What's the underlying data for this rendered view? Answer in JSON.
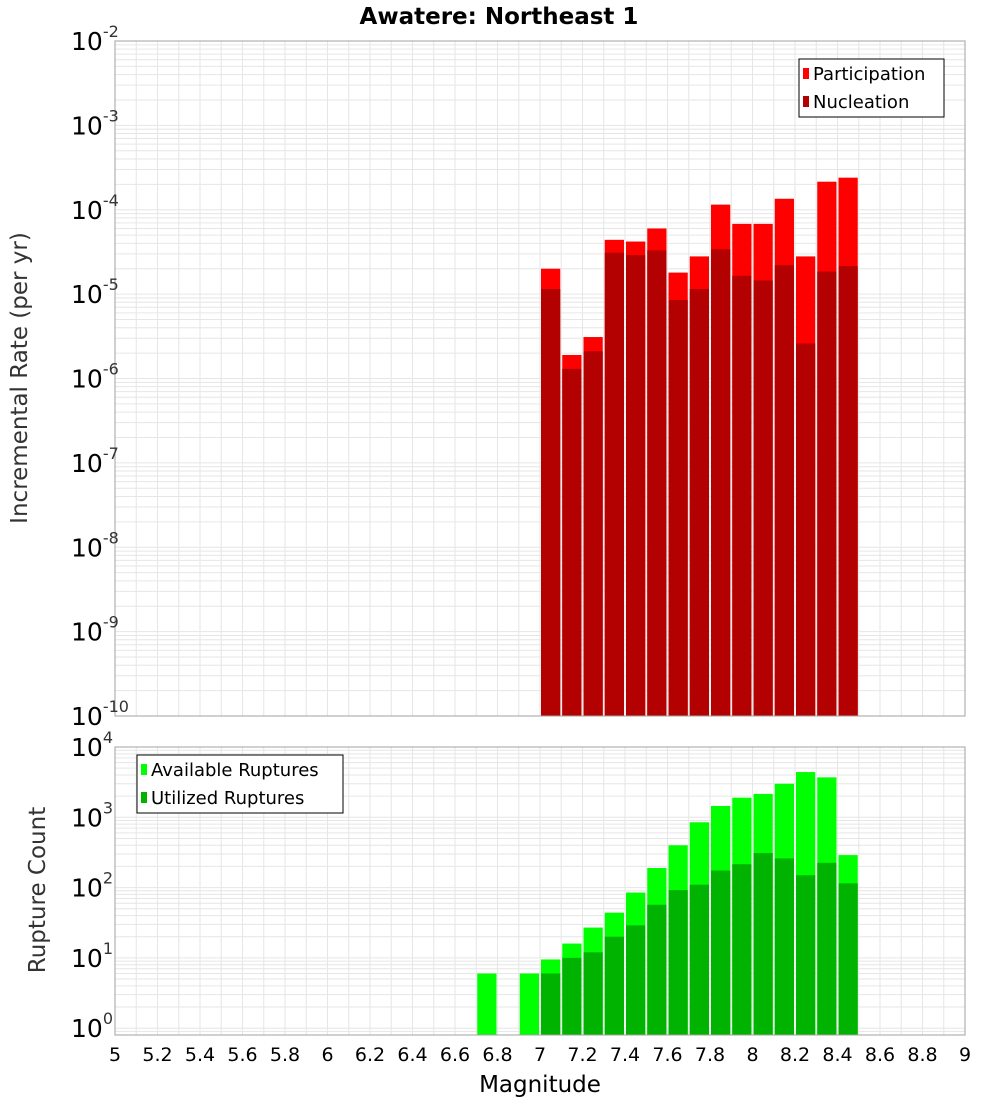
{
  "chart_data": {
    "title": "Awatere: Northeast 1",
    "xlabel": "Magnitude",
    "xlim": [
      5,
      9
    ],
    "xticks": [
      "5",
      "5.2",
      "5.4",
      "5.6",
      "5.8",
      "6",
      "6.2",
      "6.4",
      "6.6",
      "6.8",
      "7",
      "7.2",
      "7.4",
      "7.6",
      "7.8",
      "8",
      "8.2",
      "8.4",
      "8.6",
      "8.8",
      "9"
    ],
    "grid": true,
    "panels": [
      {
        "type": "bar",
        "yscale": "log",
        "ylabel": "Incremental Rate (per yr)",
        "ylim": [
          1e-10,
          0.01
        ],
        "ytick_exponents": [
          "-10",
          "-9",
          "-8",
          "-7",
          "-6",
          "-5",
          "-4",
          "-3",
          "-2"
        ],
        "legend_position": "top-right",
        "bin_width": 0.1,
        "x": [
          7.05,
          7.15,
          7.25,
          7.35,
          7.45,
          7.55,
          7.65,
          7.75,
          7.85,
          7.95,
          8.05,
          8.15,
          8.25,
          8.35,
          8.45
        ],
        "series": [
          {
            "name": "Participation",
            "color": "#ff0000",
            "values": [
              2e-05,
              1.9e-06,
              3.1e-06,
              4.4e-05,
              4.2e-05,
              6e-05,
              1.8e-05,
              2.8e-05,
              0.000115,
              6.8e-05,
              6.8e-05,
              0.000135,
              2.8e-05,
              0.000215,
              0.00024
            ]
          },
          {
            "name": "Nucleation",
            "color": "#b30000",
            "values": [
              1.15e-05,
              1.3e-06,
              2.1e-06,
              3.1e-05,
              2.9e-05,
              3.3e-05,
              8.5e-06,
              1.15e-05,
              3.4e-05,
              1.65e-05,
              1.45e-05,
              2.2e-05,
              2.6e-06,
              1.85e-05,
              2.15e-05
            ]
          }
        ]
      },
      {
        "type": "bar",
        "yscale": "log",
        "ylabel": "Rupture Count",
        "ylim": [
          0.8,
          10000.0
        ],
        "ytick_exponents": [
          "0",
          "1",
          "2",
          "3",
          "4"
        ],
        "legend_position": "top-left",
        "bin_width": 0.1,
        "x": [
          6.75,
          6.95,
          7.05,
          7.15,
          7.25,
          7.35,
          7.45,
          7.55,
          7.65,
          7.75,
          7.85,
          7.95,
          8.05,
          8.15,
          8.25,
          8.35,
          8.45
        ],
        "series": [
          {
            "name": "Available Ruptures",
            "color": "#00ff00",
            "values": [
              6,
              6,
              9.5,
              16,
              27,
              44,
              85,
              190,
              400,
              850,
              1450,
              1900,
              2150,
              3000,
              4400,
              3700,
              290
            ]
          },
          {
            "name": "Utilized Ruptures",
            "color": "#00b300",
            "values": [
              0,
              0,
              6,
              10,
              12,
              20,
              29,
              57,
              92,
              110,
              175,
              215,
              310,
              260,
              150,
              225,
              115
            ]
          }
        ]
      }
    ]
  }
}
